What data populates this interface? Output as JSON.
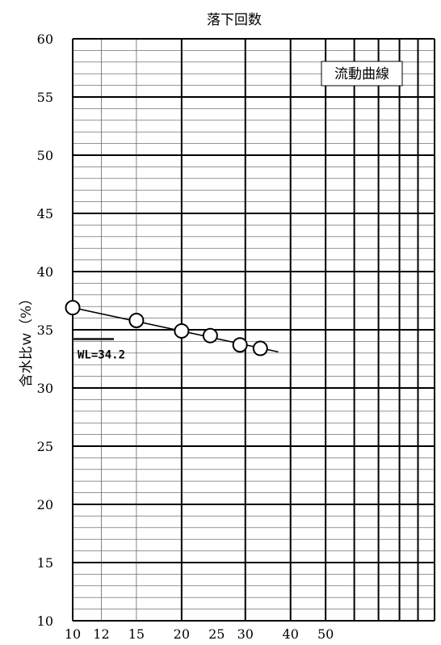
{
  "chart_data": {
    "type": "scatter",
    "title": "落下回数",
    "xlabel": "",
    "ylabel": "含水比ｗ（%）",
    "x_scale": "log",
    "xlim": [
      10,
      100
    ],
    "ylim": [
      10,
      60
    ],
    "y_ticks": [
      10,
      15,
      20,
      25,
      30,
      35,
      40,
      45,
      50,
      55,
      60
    ],
    "x_tick_labels": [
      10,
      12,
      15,
      20,
      25,
      30,
      40,
      50
    ],
    "x_major_lines": [
      10,
      20,
      30,
      40,
      50,
      60,
      70,
      80,
      90,
      100
    ],
    "x_minor_lines": [
      12,
      15
    ],
    "y_minor_step": 1,
    "y_major_step": 5,
    "grid": true,
    "legend_box_text": "流動曲線",
    "series": [
      {
        "points": [
          {
            "x": 10,
            "y": 36.9
          },
          {
            "x": 15,
            "y": 35.8
          },
          {
            "x": 20,
            "y": 34.9
          },
          {
            "x": 24,
            "y": 34.5
          },
          {
            "x": 29,
            "y": 33.7
          },
          {
            "x": 33,
            "y": 33.4
          }
        ]
      }
    ],
    "fit_line": {
      "x": [
        10,
        37
      ],
      "y": [
        36.9,
        33.1
      ]
    },
    "liquid_limit": {
      "value": 34.2,
      "label": "WL=34.2",
      "x_range": [
        10,
        13
      ]
    }
  }
}
